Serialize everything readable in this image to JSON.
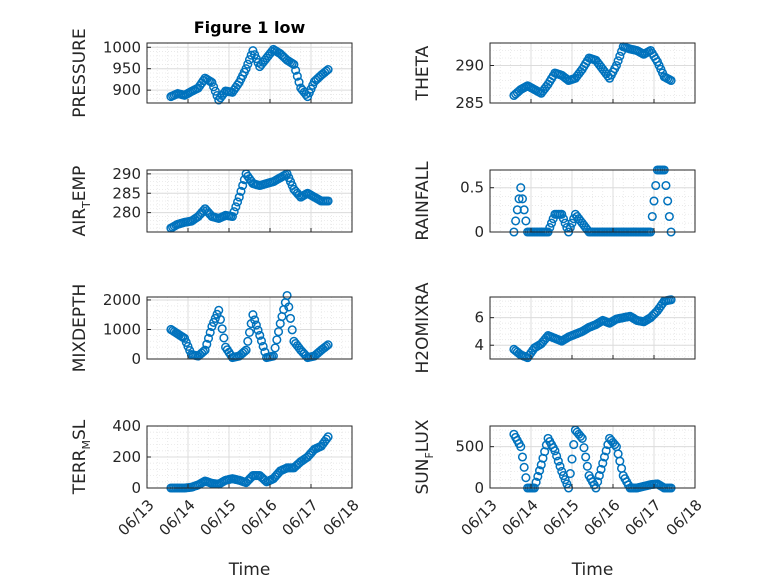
{
  "figure": {
    "title": "Figure 1 low"
  },
  "chart_data": [
    {
      "type": "scatter",
      "title": "Figure 1 low",
      "ylabel": "PRESSURE",
      "xlabel": "",
      "xlim": [
        "06/13",
        "06/18"
      ],
      "ylim": [
        870,
        1010
      ],
      "yticks": [
        900,
        950,
        1000
      ],
      "xticks": [
        "06/13",
        "06/14",
        "06/15",
        "06/16",
        "06/17",
        "06/18"
      ],
      "grid": true,
      "minor_grid": true,
      "x": [
        "06/13 14:00",
        "06/13 18:00",
        "06/13 22:00",
        "06/14 02:00",
        "06/14 06:00",
        "06/14 10:00",
        "06/14 14:00",
        "06/14 18:00",
        "06/14 22:00",
        "06/15 02:00",
        "06/15 06:00",
        "06/15 10:00",
        "06/15 14:00",
        "06/15 18:00",
        "06/15 22:00",
        "06/16 02:00",
        "06/16 06:00",
        "06/16 10:00",
        "06/16 14:00",
        "06/16 18:00",
        "06/16 22:00",
        "06/17 02:00",
        "06/17 06:00",
        "06/17 10:00"
      ],
      "y": [
        885,
        892,
        888,
        897,
        905,
        928,
        918,
        877,
        898,
        895,
        918,
        950,
        992,
        955,
        975,
        995,
        985,
        970,
        960,
        905,
        885,
        920,
        935,
        948
      ]
    },
    {
      "type": "scatter",
      "title": "",
      "ylabel": "THETA",
      "xlabel": "",
      "xlim": [
        "06/13",
        "06/18"
      ],
      "ylim": [
        285,
        293
      ],
      "yticks": [
        285,
        290
      ],
      "xticks": [
        "06/13",
        "06/14",
        "06/15",
        "06/16",
        "06/17",
        "06/18"
      ],
      "grid": true,
      "minor_grid": true,
      "x": [
        "06/13 14:00",
        "06/13 18:00",
        "06/13 22:00",
        "06/14 02:00",
        "06/14 06:00",
        "06/14 10:00",
        "06/14 14:00",
        "06/14 18:00",
        "06/14 22:00",
        "06/15 02:00",
        "06/15 06:00",
        "06/15 10:00",
        "06/15 14:00",
        "06/15 18:00",
        "06/15 22:00",
        "06/16 02:00",
        "06/16 06:00",
        "06/16 10:00",
        "06/16 14:00",
        "06/16 18:00",
        "06/16 22:00",
        "06/17 02:00",
        "06/17 06:00",
        "06/17 10:00"
      ],
      "y": [
        286,
        286.8,
        287.3,
        286.8,
        286.3,
        287.5,
        289,
        288.7,
        288,
        288.3,
        289.5,
        291,
        290.7,
        289.5,
        288.3,
        290,
        292.5,
        292.2,
        292,
        291.5,
        292,
        290.5,
        288.5,
        288
      ]
    },
    {
      "type": "scatter",
      "title": "",
      "ylabel": "AIR_TEMP",
      "xlabel": "",
      "xlim": [
        "06/13",
        "06/18"
      ],
      "ylim": [
        275,
        291
      ],
      "yticks": [
        280,
        285,
        290
      ],
      "xticks": [
        "06/13",
        "06/14",
        "06/15",
        "06/16",
        "06/17",
        "06/18"
      ],
      "grid": true,
      "minor_grid": true,
      "x": [
        "06/13 14:00",
        "06/13 18:00",
        "06/13 22:00",
        "06/14 02:00",
        "06/14 06:00",
        "06/14 10:00",
        "06/14 14:00",
        "06/14 18:00",
        "06/14 22:00",
        "06/15 02:00",
        "06/15 06:00",
        "06/15 10:00",
        "06/15 14:00",
        "06/15 18:00",
        "06/15 22:00",
        "06/16 02:00",
        "06/16 06:00",
        "06/16 10:00",
        "06/16 14:00",
        "06/16 18:00",
        "06/16 22:00",
        "06/17 02:00",
        "06/17 06:00",
        "06/17 10:00"
      ],
      "y": [
        276,
        277,
        277.5,
        277.8,
        279,
        281,
        279,
        278.5,
        279.3,
        279,
        284,
        290,
        287.5,
        287,
        287.5,
        288,
        289,
        290,
        286,
        284,
        285,
        284,
        283,
        283
      ]
    },
    {
      "type": "scatter",
      "title": "",
      "ylabel": "RAINFALL",
      "xlabel": "",
      "xlim": [
        "06/13",
        "06/18"
      ],
      "ylim": [
        0,
        0.7
      ],
      "yticks": [
        0,
        0.5
      ],
      "xticks": [
        "06/13",
        "06/14",
        "06/15",
        "06/16",
        "06/17",
        "06/18"
      ],
      "grid": true,
      "minor_grid": true,
      "x": [
        "06/13 14:00",
        "06/13 18:00",
        "06/13 22:00",
        "06/14 02:00",
        "06/14 06:00",
        "06/14 10:00",
        "06/14 14:00",
        "06/14 18:00",
        "06/14 22:00",
        "06/15 02:00",
        "06/15 06:00",
        "06/15 10:00",
        "06/15 14:00",
        "06/15 18:00",
        "06/15 22:00",
        "06/16 02:00",
        "06/16 06:00",
        "06/16 10:00",
        "06/16 14:00",
        "06/16 18:00",
        "06/16 22:00",
        "06/17 02:00",
        "06/17 06:00",
        "06/17 10:00"
      ],
      "y": [
        0,
        0.5,
        0,
        0,
        0,
        0,
        0.2,
        0.2,
        0,
        0.2,
        0.1,
        0,
        0,
        0,
        0,
        0,
        0,
        0,
        0,
        0,
        0,
        0.7,
        0.7,
        0
      ]
    },
    {
      "type": "scatter",
      "title": "",
      "ylabel": "MIXDEPTH",
      "xlabel": "",
      "xlim": [
        "06/13",
        "06/18"
      ],
      "ylim": [
        0,
        2100
      ],
      "yticks": [
        0,
        1000,
        2000
      ],
      "xticks": [
        "06/13",
        "06/14",
        "06/15",
        "06/16",
        "06/17",
        "06/18"
      ],
      "grid": true,
      "minor_grid": true,
      "x": [
        "06/13 14:00",
        "06/13 18:00",
        "06/13 22:00",
        "06/14 02:00",
        "06/14 06:00",
        "06/14 10:00",
        "06/14 14:00",
        "06/14 18:00",
        "06/14 22:00",
        "06/15 02:00",
        "06/15 06:00",
        "06/15 10:00",
        "06/15 14:00",
        "06/15 18:00",
        "06/15 22:00",
        "06/16 02:00",
        "06/16 06:00",
        "06/16 10:00",
        "06/16 14:00",
        "06/16 18:00",
        "06/16 22:00",
        "06/17 02:00",
        "06/17 06:00",
        "06/17 10:00"
      ],
      "y": [
        1000,
        850,
        700,
        150,
        100,
        300,
        1100,
        1650,
        400,
        50,
        100,
        300,
        1500,
        800,
        50,
        100,
        1200,
        2150,
        600,
        300,
        50,
        100,
        300,
        480
      ]
    },
    {
      "type": "scatter",
      "title": "",
      "ylabel": "H2OMIXRA",
      "xlabel": "",
      "xlim": [
        "06/13",
        "06/18"
      ],
      "ylim": [
        3,
        7.5
      ],
      "yticks": [
        4,
        6
      ],
      "xticks": [
        "06/13",
        "06/14",
        "06/15",
        "06/16",
        "06/17",
        "06/18"
      ],
      "grid": true,
      "minor_grid": true,
      "x": [
        "06/13 14:00",
        "06/13 18:00",
        "06/13 22:00",
        "06/14 02:00",
        "06/14 06:00",
        "06/14 10:00",
        "06/14 14:00",
        "06/14 18:00",
        "06/14 22:00",
        "06/15 02:00",
        "06/15 06:00",
        "06/15 10:00",
        "06/15 14:00",
        "06/15 18:00",
        "06/15 22:00",
        "06/16 02:00",
        "06/16 06:00",
        "06/16 10:00",
        "06/16 14:00",
        "06/16 18:00",
        "06/16 22:00",
        "06/17 02:00",
        "06/17 06:00",
        "06/17 10:00"
      ],
      "y": [
        3.7,
        3.3,
        3.1,
        3.8,
        4.1,
        4.7,
        4.5,
        4.3,
        4.6,
        4.8,
        5,
        5.3,
        5.5,
        5.8,
        5.6,
        5.9,
        6,
        6.1,
        5.8,
        5.7,
        6,
        6.5,
        7.2,
        7.3
      ]
    },
    {
      "type": "scatter",
      "title": "",
      "ylabel": "TERR_MSL",
      "xlabel": "Time",
      "xlim": [
        "06/13",
        "06/18"
      ],
      "ylim": [
        0,
        400
      ],
      "yticks": [
        0,
        200,
        400
      ],
      "xticks": [
        "06/13",
        "06/14",
        "06/15",
        "06/16",
        "06/17",
        "06/18"
      ],
      "grid": true,
      "minor_grid": true,
      "x": [
        "06/13 14:00",
        "06/13 18:00",
        "06/13 22:00",
        "06/14 02:00",
        "06/14 06:00",
        "06/14 10:00",
        "06/14 14:00",
        "06/14 18:00",
        "06/14 22:00",
        "06/15 02:00",
        "06/15 06:00",
        "06/15 10:00",
        "06/15 14:00",
        "06/15 18:00",
        "06/15 22:00",
        "06/16 02:00",
        "06/16 06:00",
        "06/16 10:00",
        "06/16 14:00",
        "06/16 18:00",
        "06/16 22:00",
        "06/17 02:00",
        "06/17 06:00",
        "06/17 10:00"
      ],
      "y": [
        0,
        0,
        0,
        5,
        20,
        45,
        30,
        25,
        50,
        60,
        50,
        35,
        80,
        80,
        40,
        60,
        110,
        130,
        130,
        170,
        200,
        250,
        270,
        330
      ]
    },
    {
      "type": "scatter",
      "title": "",
      "ylabel": "SUN_FLUX",
      "xlabel": "Time",
      "xlim": [
        "06/13",
        "06/18"
      ],
      "ylim": [
        0,
        750
      ],
      "yticks": [
        0,
        500
      ],
      "xticks": [
        "06/13",
        "06/14",
        "06/15",
        "06/16",
        "06/17",
        "06/18"
      ],
      "grid": true,
      "minor_grid": true,
      "x": [
        "06/13 14:00",
        "06/13 18:00",
        "06/13 22:00",
        "06/14 02:00",
        "06/14 06:00",
        "06/14 10:00",
        "06/14 14:00",
        "06/14 18:00",
        "06/14 22:00",
        "06/15 02:00",
        "06/15 06:00",
        "06/15 10:00",
        "06/15 14:00",
        "06/15 18:00",
        "06/15 22:00",
        "06/16 02:00",
        "06/16 06:00",
        "06/16 10:00",
        "06/16 14:00",
        "06/16 18:00",
        "06/16 22:00",
        "06/17 02:00",
        "06/17 06:00",
        "06/17 10:00"
      ],
      "y": [
        650,
        500,
        0,
        0,
        280,
        600,
        450,
        200,
        0,
        700,
        600,
        150,
        0,
        300,
        600,
        500,
        150,
        0,
        0,
        20,
        40,
        50,
        0,
        0
      ]
    }
  ],
  "colors": {
    "marker": "#0072bd",
    "axis": "#262626",
    "grid": "#dcdcdc"
  }
}
